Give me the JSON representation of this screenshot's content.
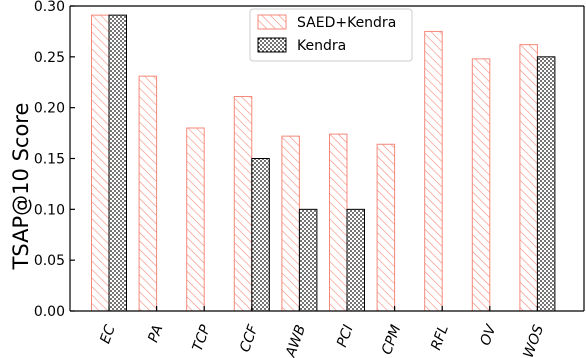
{
  "chart_data": {
    "type": "bar",
    "title": "",
    "xlabel": "",
    "ylabel": "TSAP@10 Score",
    "ylim": [
      0,
      0.3
    ],
    "yticks": [
      "0.00",
      "0.05",
      "0.10",
      "0.15",
      "0.20",
      "0.25",
      "0.30"
    ],
    "grid": false,
    "legend_position": "top-center",
    "categories": [
      "EC",
      "PA",
      "TCP",
      "CCF",
      "AWB",
      "PCI",
      "CPM",
      "RFL",
      "OV",
      "WOS"
    ],
    "series": [
      {
        "name": "SAED+Kendra",
        "pattern": "diagonal-hatch",
        "color": "#f4897b",
        "values": [
          0.291,
          0.231,
          0.18,
          0.211,
          0.172,
          0.174,
          0.164,
          0.275,
          0.248,
          0.262
        ]
      },
      {
        "name": "Kendra",
        "pattern": "dots",
        "color": "#000000",
        "values": [
          0.291,
          null,
          null,
          0.15,
          0.1,
          0.1,
          null,
          null,
          null,
          0.25
        ]
      }
    ]
  }
}
